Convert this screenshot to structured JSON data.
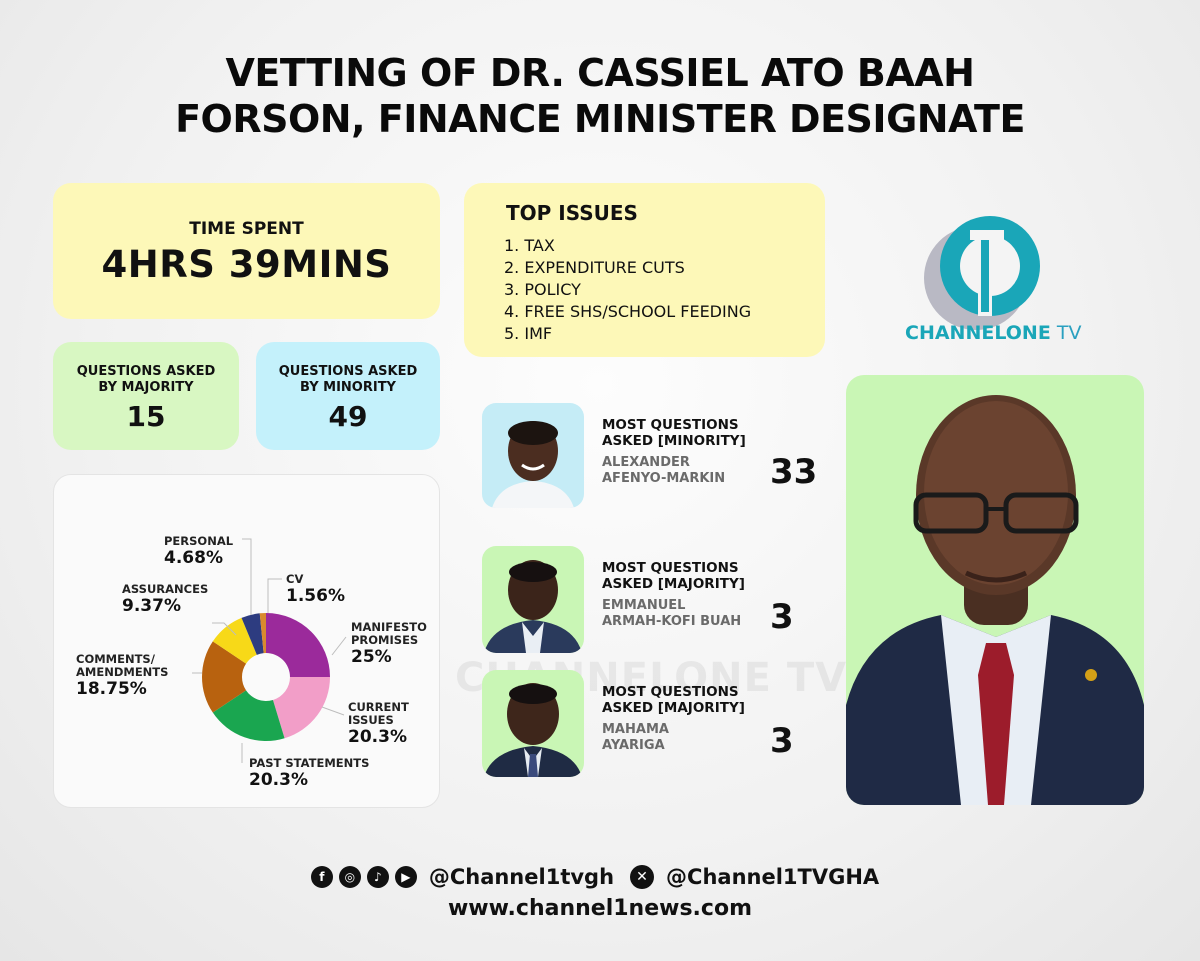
{
  "title": {
    "line1": "VETTING OF DR. CASSIEL ATO BAAH",
    "line2": "FORSON, FINANCE MINISTER DESIGNATE"
  },
  "time_spent": {
    "label": "TIME SPENT",
    "value": "4HRS 39MINS"
  },
  "questions_majority": {
    "label1": "QUESTIONS ASKED",
    "label2": "BY MAJORITY",
    "value": "15"
  },
  "questions_minority": {
    "label1": "QUESTIONS ASKED",
    "label2": "BY MINORITY",
    "value": "49"
  },
  "top_issues": {
    "title": "TOP ISSUES",
    "items": [
      "1.  TAX",
      "2. EXPENDITURE CUTS",
      "3. POLICY",
      "4. FREE SHS/SCHOOL FEEDING",
      "5. IMF"
    ]
  },
  "chart_data": {
    "type": "pie",
    "slices": [
      {
        "name": "MANIFESTO PROMISES",
        "label_lines": [
          "MANIFESTO",
          "PROMISES"
        ],
        "display": "25%",
        "value": 25,
        "color": "#9b2a9b"
      },
      {
        "name": "CURRENT ISSUES",
        "label_lines": [
          "CURRENT",
          "ISSUES"
        ],
        "display": "20.3%",
        "value": 20.3,
        "color": "#f29ec8"
      },
      {
        "name": "PAST STATEMENTS",
        "label_lines": [
          "PAST STATEMENTS"
        ],
        "display": "20.3%",
        "value": 20.3,
        "color": "#1aa650"
      },
      {
        "name": "COMMENTS/ AMENDMENTS",
        "label_lines": [
          "COMMENTS/",
          "AMENDMENTS"
        ],
        "display": "18.75%",
        "value": 18.75,
        "color": "#b8620f"
      },
      {
        "name": "ASSURANCES",
        "label_lines": [
          "ASSURANCES"
        ],
        "display": "9.37%",
        "value": 9.37,
        "color": "#f7d918"
      },
      {
        "name": "PERSONAL",
        "label_lines": [
          "PERSONAL"
        ],
        "display": "4.68%",
        "value": 4.68,
        "color": "#2d3c80"
      },
      {
        "name": "CV",
        "label_lines": [
          "CV"
        ],
        "display": "1.56%",
        "value": 1.56,
        "color": "#d98a2e"
      }
    ]
  },
  "most_questions": [
    {
      "heading1": "MOST QUESTIONS",
      "heading2": "ASKED [MINORITY]",
      "name1": "ALEXANDER",
      "name2": "AFENYO-MARKIN",
      "count": "33"
    },
    {
      "heading1": "MOST QUESTIONS",
      "heading2": "ASKED [MAJORITY]",
      "name1": "EMMANUEL",
      "name2": "ARMAH-KOFI BUAH",
      "count": "3"
    },
    {
      "heading1": "MOST QUESTIONS",
      "heading2": "ASKED [MAJORITY]",
      "name1": "MAHAMA",
      "name2": "AYARIGA",
      "count": "3"
    }
  ],
  "logo": {
    "text_main": "CHANNELONE",
    "text_tv": " TV"
  },
  "watermark": "CHANNELONE TV",
  "footer": {
    "handle1": "@Channel1tvgh",
    "handle2": "@Channel1TVGHA",
    "website": "www.channel1news.com",
    "icons": [
      "facebook-icon",
      "instagram-icon",
      "tiktok-icon",
      "youtube-icon",
      "x-icon"
    ]
  }
}
